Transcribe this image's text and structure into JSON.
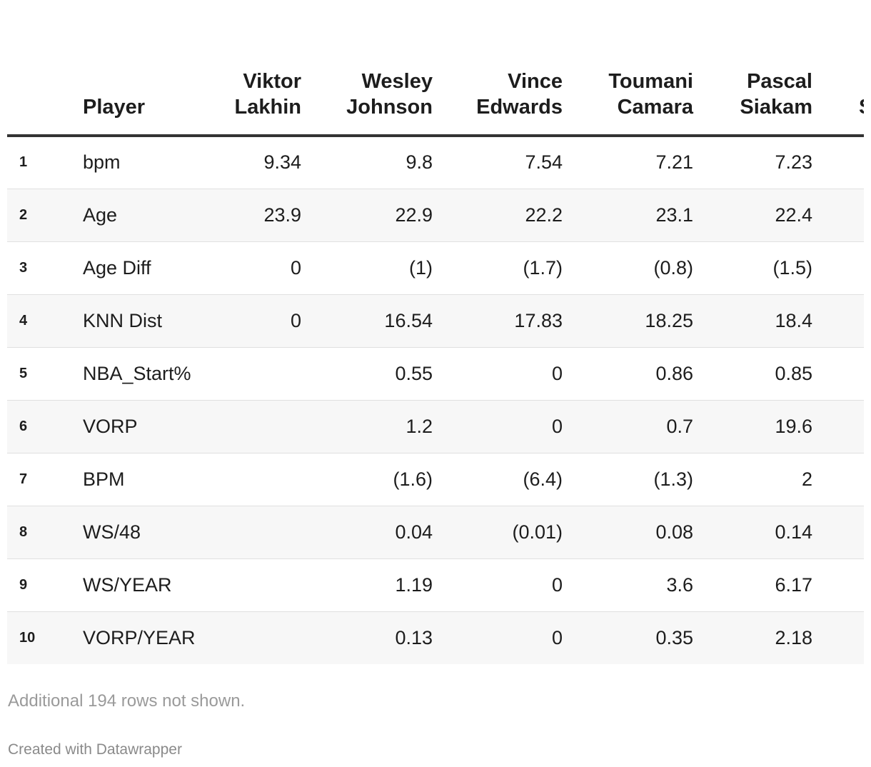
{
  "chart_data": {
    "type": "table",
    "columns": [
      {
        "label": "",
        "key": "rank"
      },
      {
        "label": "Player",
        "key": "metric"
      },
      {
        "label": "Viktor Lakhin",
        "key": "p1"
      },
      {
        "label": "Wesley Johnson",
        "key": "p2"
      },
      {
        "label": "Vince Edwards",
        "key": "p3"
      },
      {
        "label": "Toumani Camara",
        "key": "p4"
      },
      {
        "label": "Pascal Siakam",
        "key": "p5"
      },
      {
        "label": "S",
        "key": "p6"
      }
    ],
    "rows": [
      [
        "1",
        "bpm",
        "9.34",
        "9.8",
        "7.54",
        "7.21",
        "7.23",
        ""
      ],
      [
        "2",
        "Age",
        "23.9",
        "22.9",
        "22.2",
        "23.1",
        "22.4",
        ""
      ],
      [
        "3",
        "Age Diff",
        "0",
        "(1)",
        "(1.7)",
        "(0.8)",
        "(1.5)",
        ""
      ],
      [
        "4",
        "KNN Dist",
        "0",
        "16.54",
        "17.83",
        "18.25",
        "18.4",
        ""
      ],
      [
        "5",
        "NBA_Start%",
        "",
        "0.55",
        "0",
        "0.86",
        "0.85",
        ""
      ],
      [
        "6",
        "VORP",
        "",
        "1.2",
        "0",
        "0.7",
        "19.6",
        ""
      ],
      [
        "7",
        "BPM",
        "",
        "(1.6)",
        "(6.4)",
        "(1.3)",
        "2",
        ""
      ],
      [
        "8",
        "WS/48",
        "",
        "0.04",
        "(0.01)",
        "0.08",
        "0.14",
        ""
      ],
      [
        "9",
        "WS/YEAR",
        "",
        "1.19",
        "0",
        "3.6",
        "6.17",
        ""
      ],
      [
        "10",
        "VORP/YEAR",
        "",
        "0.13",
        "0",
        "0.35",
        "2.18",
        ""
      ]
    ]
  },
  "footer": {
    "notes": "Additional 194 rows not shown.",
    "credit": "Created with Datawrapper"
  }
}
